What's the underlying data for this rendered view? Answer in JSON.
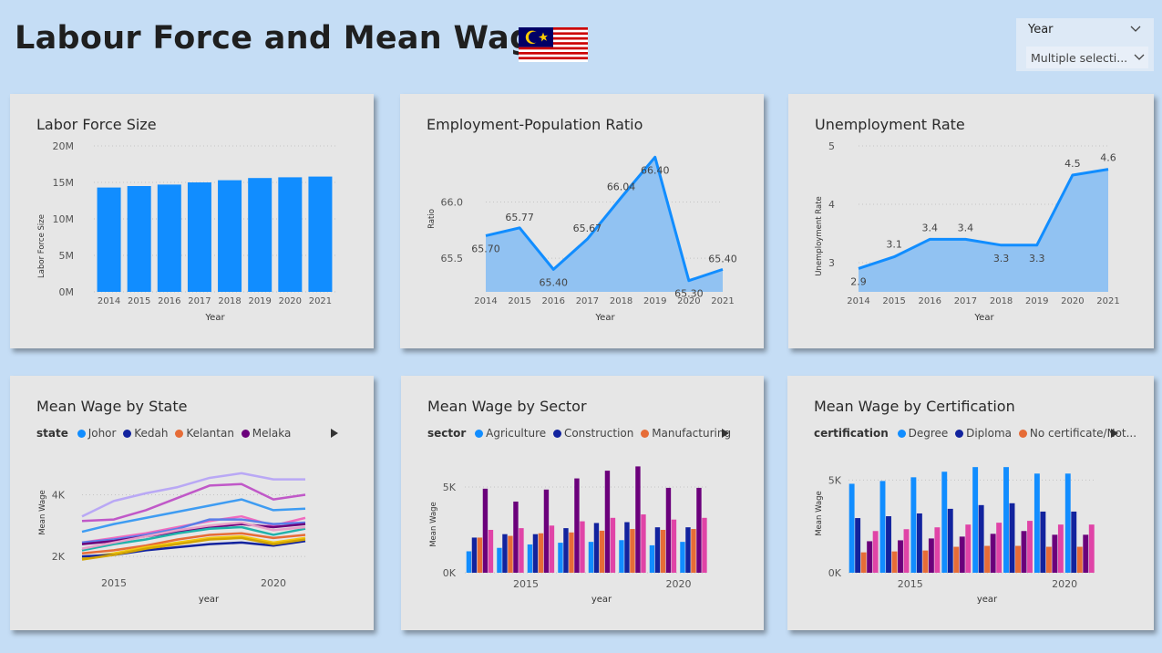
{
  "page": {
    "title": "Labour Force and Mean Wage"
  },
  "slicer": {
    "label": "Year",
    "value": "Multiple selecti..."
  },
  "colors": {
    "accent": "#118dff",
    "area": "#91c2f2",
    "panel": "#e6e6e6",
    "background": "#c5ddf5"
  },
  "icons": {
    "flag": "malaysia-flag-icon",
    "chevron": "chevron-down-icon",
    "next": "play-right-icon"
  },
  "chart_data": [
    {
      "id": "labor",
      "type": "bar",
      "title": "Labor Force Size",
      "xlabel": "Year",
      "ylabel": "Labor Force Size",
      "categories": [
        "2014",
        "2015",
        "2016",
        "2017",
        "2018",
        "2019",
        "2020",
        "2021"
      ],
      "values": [
        14.3,
        14.5,
        14.7,
        15.0,
        15.3,
        15.6,
        15.7,
        15.8
      ],
      "ylim": [
        0,
        20
      ],
      "yticks": [
        {
          "v": 0,
          "label": "0M"
        },
        {
          "v": 5,
          "label": "5M"
        },
        {
          "v": 10,
          "label": "10M"
        },
        {
          "v": 15,
          "label": "15M"
        },
        {
          "v": 20,
          "label": "20M"
        }
      ],
      "grid": true
    },
    {
      "id": "epr",
      "type": "area",
      "title": "Employment-Population Ratio",
      "xlabel": "Year",
      "ylabel": "Ratio",
      "categories": [
        "2014",
        "2015",
        "2016",
        "2017",
        "2018",
        "2019",
        "2020",
        "2021"
      ],
      "values": [
        65.7,
        65.77,
        65.4,
        65.67,
        66.04,
        66.4,
        65.3,
        65.4
      ],
      "data_labels": [
        "65.70",
        "65.77",
        "65.40",
        "65.67",
        "66.04",
        "66.40",
        "65.30",
        "65.40"
      ],
      "ylim": [
        65.2,
        66.5
      ],
      "yticks": [
        {
          "v": 65.5,
          "label": "65.5"
        },
        {
          "v": 66.0,
          "label": "66.0"
        }
      ],
      "grid": true
    },
    {
      "id": "unemp",
      "type": "area",
      "title": "Unemployment Rate",
      "xlabel": "Year",
      "ylabel": "Unemployment Rate",
      "categories": [
        "2014",
        "2015",
        "2016",
        "2017",
        "2018",
        "2019",
        "2020",
        "2021"
      ],
      "values": [
        2.9,
        3.1,
        3.4,
        3.4,
        3.3,
        3.3,
        4.5,
        4.6
      ],
      "data_labels": [
        "2.9",
        "3.1",
        "3.4",
        "3.4",
        "3.3",
        "3.3",
        "4.5",
        "4.6"
      ],
      "ylim": [
        2.5,
        5
      ],
      "yticks": [
        {
          "v": 3,
          "label": "3"
        },
        {
          "v": 4,
          "label": "4"
        },
        {
          "v": 5,
          "label": "5"
        }
      ],
      "grid": true
    },
    {
      "id": "state",
      "type": "line",
      "title": "Mean Wage by State",
      "legend_title": "state",
      "legend": [
        {
          "name": "Johor",
          "color": "#118dff"
        },
        {
          "name": "Kedah",
          "color": "#12239e"
        },
        {
          "name": "Kelantan",
          "color": "#e66c37"
        },
        {
          "name": "Melaka",
          "color": "#6b007b"
        }
      ],
      "xlabel": "year",
      "ylabel": "Mean Wage",
      "x": [
        2014,
        2015,
        2016,
        2017,
        2018,
        2019,
        2020,
        2021
      ],
      "xlim": [
        2014,
        2021
      ],
      "xticks": [
        {
          "v": 2015,
          "label": "2015"
        },
        {
          "v": 2020,
          "label": "2020"
        }
      ],
      "ylim": [
        1500,
        5200
      ],
      "yticks": [
        {
          "v": 2000,
          "label": "2K"
        },
        {
          "v": 4000,
          "label": "4K"
        }
      ],
      "series": [
        {
          "color": "#b9a8f5",
          "values": [
            3300,
            3800,
            4050,
            4250,
            4550,
            4700,
            4500,
            4500
          ]
        },
        {
          "color": "#c058c8",
          "values": [
            3150,
            3200,
            3500,
            3900,
            4300,
            4350,
            3850,
            4000
          ]
        },
        {
          "color": "#3e9cf2",
          "values": [
            2800,
            3050,
            3250,
            3450,
            3650,
            3850,
            3500,
            3550
          ]
        },
        {
          "color": "#f06bbf",
          "values": [
            2450,
            2600,
            2750,
            2950,
            3150,
            3300,
            3000,
            3250
          ]
        },
        {
          "color": "#5a7ee8",
          "values": [
            2450,
            2550,
            2700,
            2900,
            3200,
            3200,
            3050,
            3100
          ]
        },
        {
          "color": "#6b007b",
          "values": [
            2400,
            2500,
            2650,
            2800,
            2950,
            3050,
            2950,
            3050
          ]
        },
        {
          "color": "#20b2aa",
          "values": [
            2200,
            2400,
            2550,
            2750,
            2900,
            2950,
            2700,
            2900
          ]
        },
        {
          "color": "#e66c37",
          "values": [
            2100,
            2200,
            2350,
            2550,
            2700,
            2750,
            2600,
            2700
          ]
        },
        {
          "color": "#f2c80f",
          "values": [
            1950,
            2100,
            2300,
            2450,
            2600,
            2650,
            2450,
            2600
          ]
        },
        {
          "color": "#12239e",
          "values": [
            2000,
            2050,
            2200,
            2300,
            2400,
            2450,
            2350,
            2500
          ]
        },
        {
          "color": "#e8a0c8",
          "values": [
            2250,
            2450,
            2650,
            2850,
            3000,
            3100,
            2850,
            2950
          ]
        },
        {
          "color": "#d2a400",
          "values": [
            1900,
            2050,
            2250,
            2400,
            2550,
            2600,
            2400,
            2550
          ]
        }
      ]
    },
    {
      "id": "sector",
      "type": "bar",
      "title": "Mean Wage by Sector",
      "legend_title": "sector",
      "legend": [
        {
          "name": "Agriculture",
          "color": "#118dff"
        },
        {
          "name": "Construction",
          "color": "#12239e"
        },
        {
          "name": "Manufacturing",
          "color": "#e66c37"
        }
      ],
      "xlabel": "year",
      "ylabel": "Mean Wage",
      "categories": [
        2014,
        2015,
        2016,
        2017,
        2018,
        2019,
        2020,
        2021
      ],
      "xticks": [
        {
          "v": 2015,
          "label": "2015"
        },
        {
          "v": 2020,
          "label": "2020"
        }
      ],
      "ylim": [
        0,
        6700
      ],
      "yticks": [
        {
          "v": 0,
          "label": "0K"
        },
        {
          "v": 5000,
          "label": "5K"
        }
      ],
      "series": [
        {
          "name": "Agriculture",
          "color": "#118dff",
          "values": [
            1250,
            1450,
            1650,
            1750,
            1800,
            1900,
            1600,
            1800
          ]
        },
        {
          "name": "Construction",
          "color": "#12239e",
          "values": [
            2050,
            2250,
            2250,
            2600,
            2900,
            2950,
            2650,
            2650
          ]
        },
        {
          "color": "#e66c37",
          "values": [
            2050,
            2150,
            2300,
            2350,
            2450,
            2550,
            2500,
            2550
          ]
        },
        {
          "color": "#6b007b",
          "values": [
            4900,
            4150,
            4850,
            5500,
            5950,
            6200,
            4950,
            4950
          ]
        },
        {
          "color": "#e044a7",
          "values": [
            2500,
            2600,
            2750,
            3000,
            3200,
            3400,
            3100,
            3200
          ]
        }
      ]
    },
    {
      "id": "cert",
      "type": "bar",
      "title": "Mean Wage by Certification",
      "legend_title": "certification",
      "legend": [
        {
          "name": "Degree",
          "color": "#118dff"
        },
        {
          "name": "Diploma",
          "color": "#12239e"
        },
        {
          "name": "No certificate/Not...",
          "color": "#e66c37"
        }
      ],
      "xlabel": "year",
      "ylabel": "Mean Wage",
      "categories": [
        2014,
        2015,
        2016,
        2017,
        2018,
        2019,
        2020,
        2021
      ],
      "xticks": [
        {
          "v": 2015,
          "label": "2015"
        },
        {
          "v": 2020,
          "label": "2020"
        }
      ],
      "ylim": [
        0,
        6200
      ],
      "yticks": [
        {
          "v": 0,
          "label": "0K"
        },
        {
          "v": 5000,
          "label": "5K"
        }
      ],
      "series": [
        {
          "name": "Degree",
          "color": "#118dff",
          "values": [
            4800,
            4950,
            5150,
            5450,
            5700,
            5700,
            5350,
            5350
          ]
        },
        {
          "name": "Diploma",
          "color": "#12239e",
          "values": [
            2950,
            3050,
            3200,
            3450,
            3650,
            3750,
            3300,
            3300
          ]
        },
        {
          "color": "#e66c37",
          "values": [
            1100,
            1150,
            1200,
            1400,
            1450,
            1450,
            1400,
            1400
          ]
        },
        {
          "color": "#6b007b",
          "values": [
            1700,
            1750,
            1850,
            1950,
            2100,
            2250,
            2050,
            2050
          ]
        },
        {
          "color": "#e044a7",
          "values": [
            2250,
            2350,
            2450,
            2600,
            2700,
            2800,
            2600,
            2600
          ]
        }
      ]
    }
  ]
}
